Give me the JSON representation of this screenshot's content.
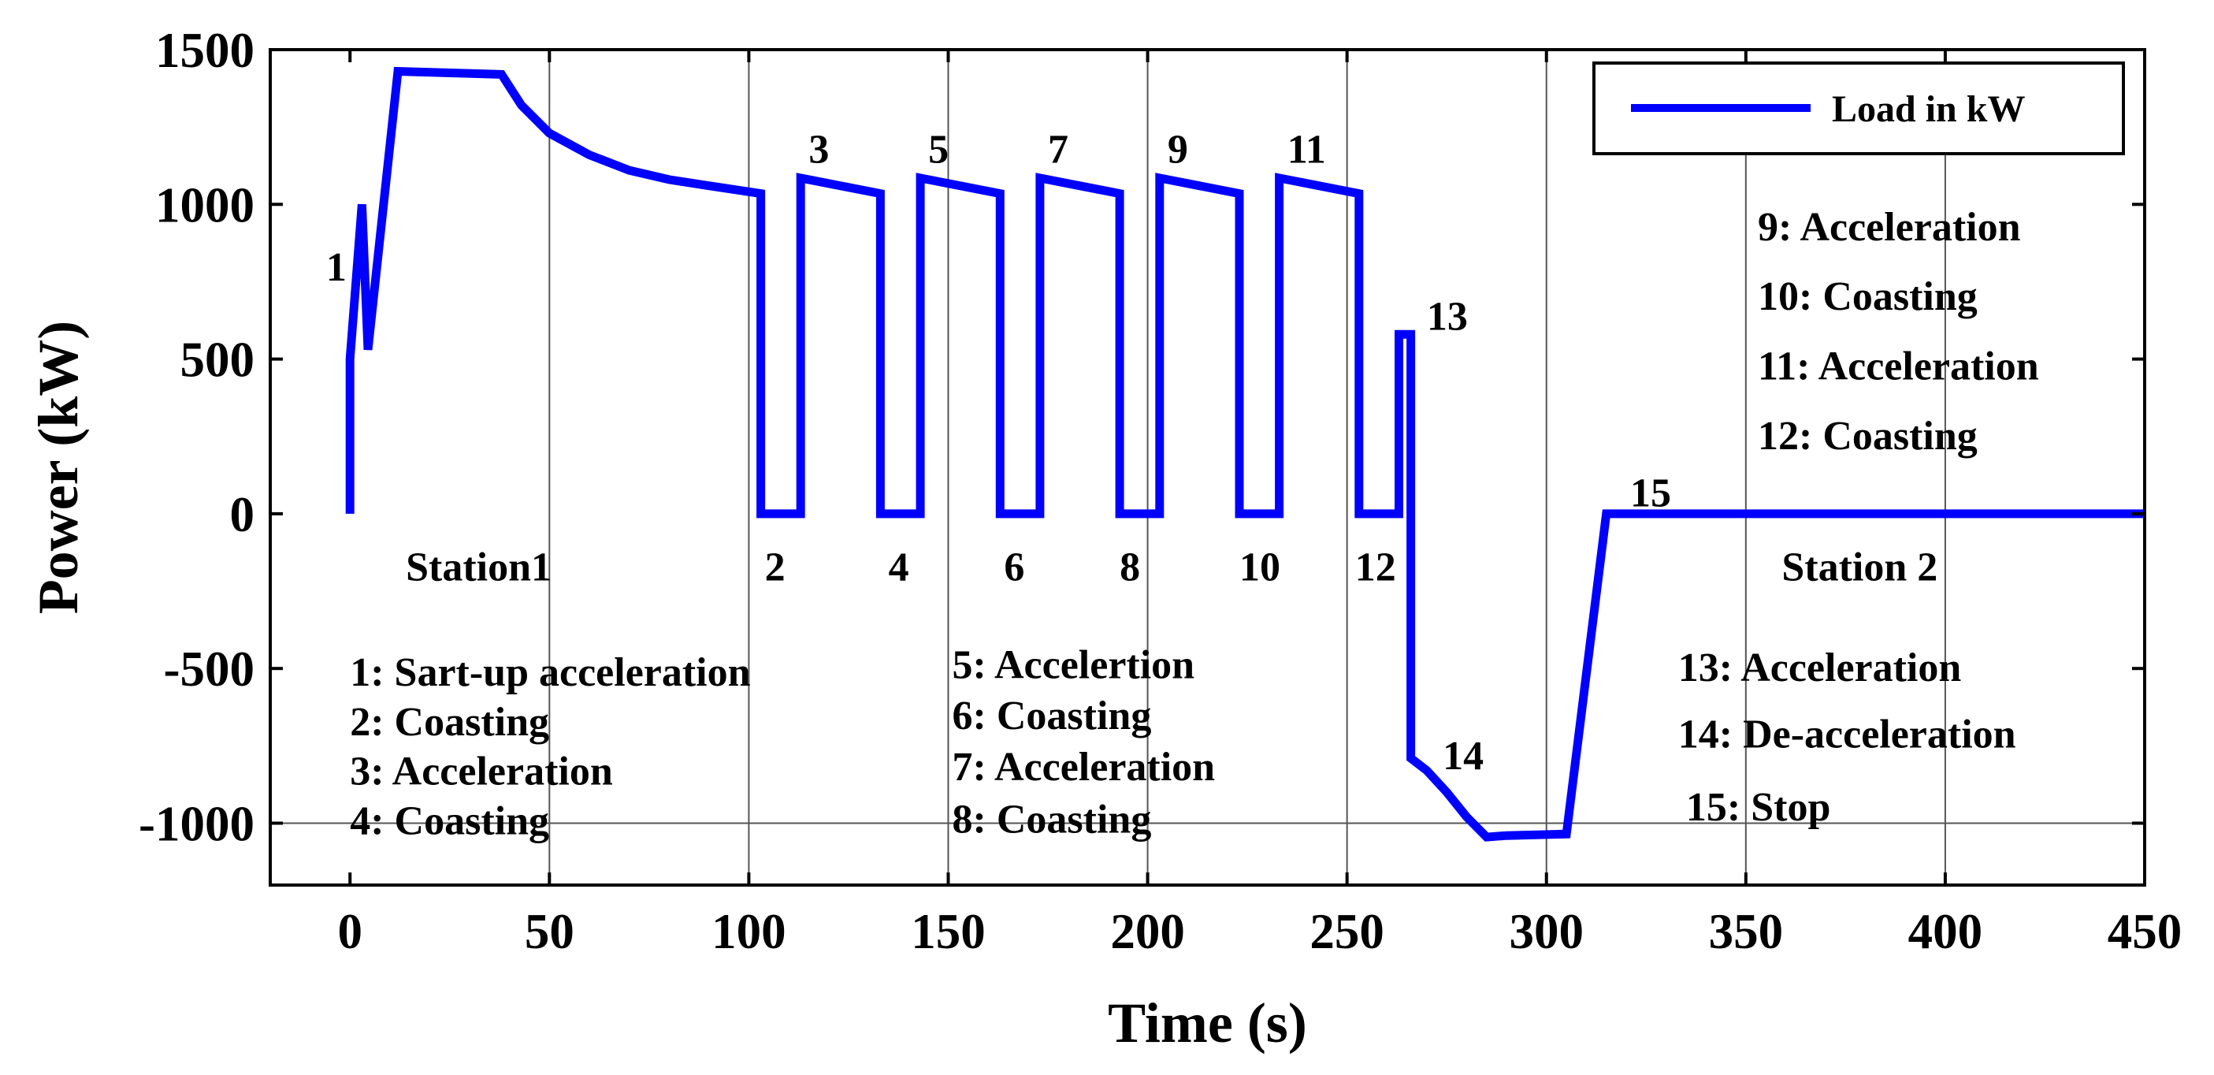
{
  "chart_data": {
    "type": "line",
    "xlabel": "Time (s)",
    "ylabel": "Power (kW)",
    "xlim": [
      -20,
      450
    ],
    "ylim": [
      -1200,
      1500
    ],
    "xticks": [
      0,
      50,
      100,
      150,
      200,
      250,
      300,
      350,
      400,
      450
    ],
    "yticks": [
      -1000,
      -500,
      0,
      500,
      1000,
      1500
    ],
    "xtick_labels": [
      "0",
      "50",
      "100",
      "150",
      "200",
      "250",
      "300",
      "350",
      "400",
      "450"
    ],
    "ytick_labels": [
      "-1000",
      "-500",
      "0",
      "500",
      "1000",
      "1500"
    ],
    "grid_x": [
      50,
      100,
      150,
      200,
      250,
      300,
      350,
      400
    ],
    "grid_y": [
      -1000
    ],
    "legend": {
      "position": "top-right",
      "label": "Load in kW"
    },
    "series": [
      {
        "name": "Load in kW",
        "color": "#0000ff",
        "x": [
          0,
          0,
          3,
          4.5,
          12,
          38,
          43,
          50,
          60,
          70,
          80,
          90,
          103,
          103,
          113,
          113,
          133,
          133,
          143,
          143,
          163,
          163,
          173,
          173,
          193,
          193,
          203,
          203,
          223,
          223,
          233,
          233,
          253,
          253,
          263,
          263,
          266,
          266,
          270,
          275,
          280,
          285,
          290,
          305,
          315,
          450
        ],
        "values": [
          0,
          500,
          1000,
          530,
          1430,
          1420,
          1320,
          1230,
          1160,
          1110,
          1080,
          1060,
          1035,
          0,
          0,
          1085,
          1035,
          0,
          0,
          1085,
          1035,
          0,
          0,
          1085,
          1035,
          0,
          0,
          1085,
          1035,
          0,
          0,
          1085,
          1035,
          0,
          0,
          580,
          580,
          -790,
          -830,
          -900,
          -980,
          -1045,
          -1040,
          -1035,
          0,
          0
        ]
      }
    ],
    "annotations": [
      {
        "text": "1",
        "x": -6,
        "y": 800
      },
      {
        "text": "3",
        "x": 115,
        "y": 1180
      },
      {
        "text": "5",
        "x": 145,
        "y": 1180
      },
      {
        "text": "7",
        "x": 175,
        "y": 1180
      },
      {
        "text": "9",
        "x": 205,
        "y": 1180
      },
      {
        "text": "11",
        "x": 235,
        "y": 1180
      },
      {
        "text": "13",
        "x": 270,
        "y": 640
      },
      {
        "text": "2",
        "x": 104,
        "y": -170
      },
      {
        "text": "4",
        "x": 135,
        "y": -170
      },
      {
        "text": "6",
        "x": 164,
        "y": -170
      },
      {
        "text": "8",
        "x": 193,
        "y": -170
      },
      {
        "text": "10",
        "x": 223,
        "y": -170
      },
      {
        "text": "12",
        "x": 252,
        "y": -170
      },
      {
        "text": "Station1",
        "x": 14,
        "y": -170
      },
      {
        "text": "14",
        "x": 274,
        "y": -780
      },
      {
        "text": "15",
        "x": 321,
        "y": 70
      },
      {
        "text": "Station 2",
        "x": 359,
        "y": -170
      },
      {
        "text": "9: Acceleration",
        "x": 353,
        "y": 930
      },
      {
        "text": "10: Coasting",
        "x": 353,
        "y": 705
      },
      {
        "text": "11: Acceleration",
        "x": 353,
        "y": 480
      },
      {
        "text": "12: Coasting",
        "x": 353,
        "y": 255
      },
      {
        "text": "1: Sart-up acceleration",
        "x": 0,
        "y": -510
      },
      {
        "text": "2: Coasting",
        "x": 0,
        "y": -670
      },
      {
        "text": "3: Acceleration",
        "x": 0,
        "y": -830
      },
      {
        "text": "4: Coasting",
        "x": 0,
        "y": -990
      },
      {
        "text": "5: Accelertion",
        "x": 151,
        "y": -485
      },
      {
        "text": "6: Coasting",
        "x": 151,
        "y": -650
      },
      {
        "text": "7: Acceleration",
        "x": 151,
        "y": -815
      },
      {
        "text": "8: Coasting",
        "x": 151,
        "y": -985
      },
      {
        "text": "13: Acceleration",
        "x": 333,
        "y": -495
      },
      {
        "text": "14: De-acceleration",
        "x": 333,
        "y": -710
      },
      {
        "text": "15: Stop",
        "x": 335,
        "y": -945
      }
    ]
  }
}
